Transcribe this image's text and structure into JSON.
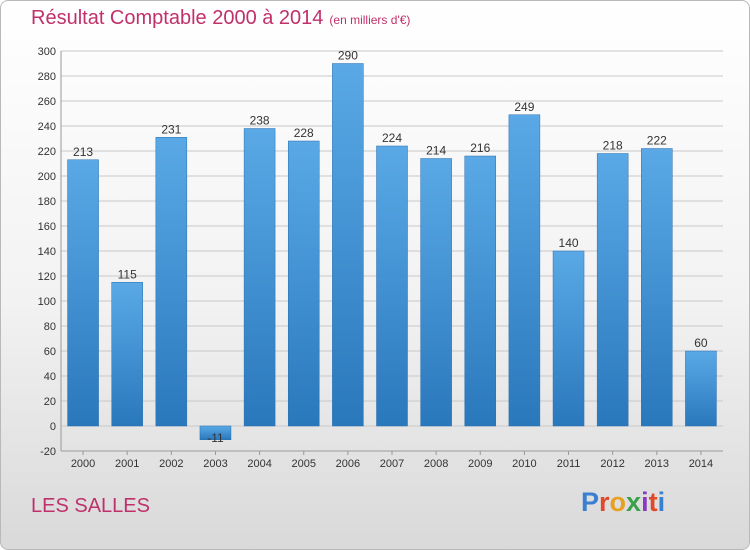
{
  "header": {
    "title": "Résultat Comptable 2000 à 2014",
    "unit_note": "(en milliers d'€)"
  },
  "footer": {
    "commune": "LES SALLES",
    "brand": "Proxiti",
    "brand_colors": [
      "#3a7fd1",
      "#e04a2a",
      "#e8a020",
      "#3aa04a",
      "#8a3ac0",
      "#e04a2a",
      "#3a7fd1"
    ]
  },
  "colors": {
    "title": "#c0306a",
    "bar_top": "#5aa9e6",
    "bar_bottom": "#2a78bc",
    "grid": "#c8c8c8",
    "axis_text": "#333333",
    "value_text": "#333333"
  },
  "chart_data": {
    "type": "bar",
    "title": "Résultat Comptable 2000 à 2014",
    "subtitle": "(en milliers d'€)",
    "xlabel": "",
    "ylabel": "",
    "categories": [
      "2000",
      "2001",
      "2002",
      "2003",
      "2004",
      "2005",
      "2006",
      "2007",
      "2008",
      "2009",
      "2010",
      "2011",
      "2012",
      "2013",
      "2014"
    ],
    "values": [
      213,
      115,
      231,
      -11,
      238,
      228,
      290,
      224,
      214,
      216,
      249,
      140,
      218,
      222,
      60
    ],
    "value_labels": [
      "213",
      "115",
      "231",
      "-11",
      "238",
      "228",
      "290",
      "224",
      "214",
      "216",
      "249",
      "140",
      "218",
      "222",
      "60"
    ],
    "ylim": [
      -20,
      300
    ],
    "yticks": [
      -20,
      0,
      20,
      40,
      60,
      80,
      100,
      120,
      140,
      160,
      180,
      200,
      220,
      240,
      260,
      280,
      300
    ],
    "grid": true,
    "legend": "none"
  }
}
